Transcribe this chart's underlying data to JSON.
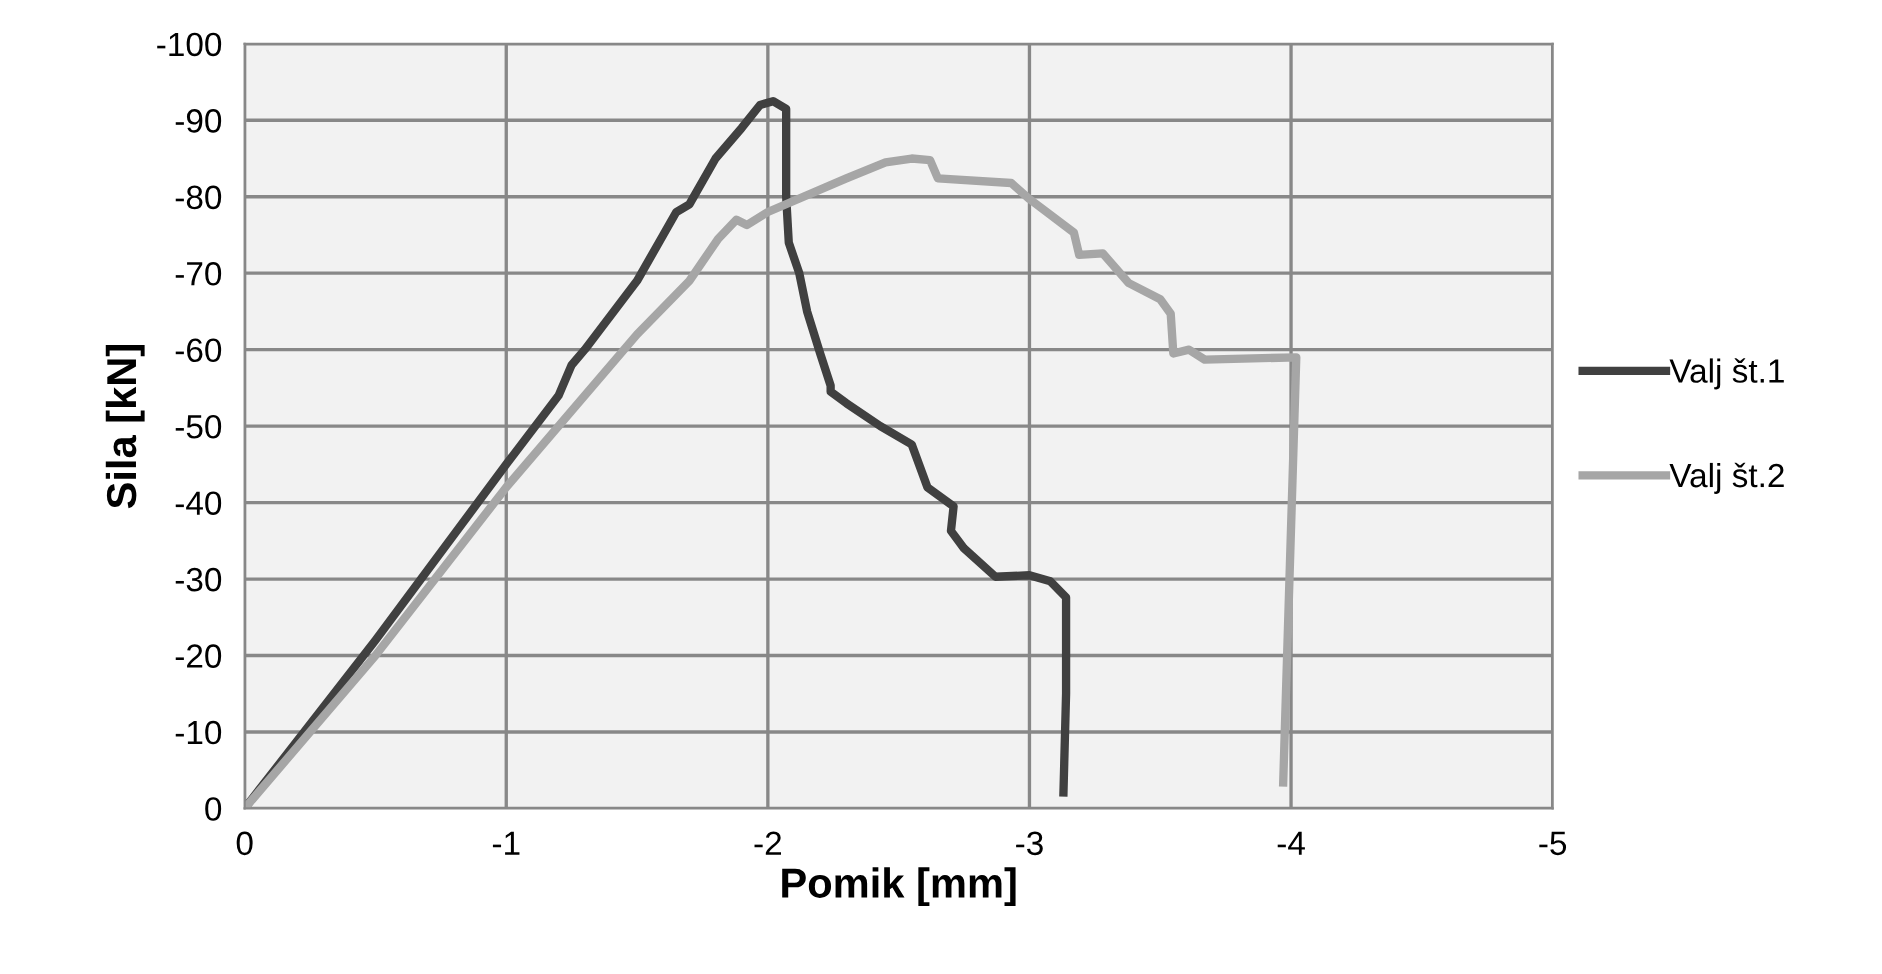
{
  "chart_data": {
    "type": "line",
    "xlabel": "Pomik [mm]",
    "ylabel": "Sila [kN]",
    "xlim": [
      0,
      -5
    ],
    "ylim": [
      0,
      -100
    ],
    "xticks": [
      0,
      -1,
      -2,
      -3,
      -4,
      -5
    ],
    "yticks": [
      0,
      -10,
      -20,
      -30,
      -40,
      -50,
      -60,
      -70,
      -80,
      -90,
      -100
    ],
    "grid": true,
    "legend": "right",
    "marker": "none",
    "line_style": "solid",
    "series": [
      {
        "name": "Valj št.1",
        "color": "#404040",
        "x": [
          0,
          -0.5,
          -1,
          -1.2,
          -1.25,
          -1.3,
          -1.5,
          -1.6,
          -1.65,
          -1.7,
          -1.8,
          -1.9,
          -1.97,
          -2.02,
          -2.07,
          -2.07,
          -2.08,
          -2.12,
          -2.15,
          -2.2,
          -2.24,
          -2.24,
          -2.3,
          -2.43,
          -2.55,
          -2.61,
          -2.71,
          -2.7,
          -2.75,
          -2.87,
          -3.0,
          -3.08,
          -3.14,
          -3.14,
          -3.13
        ],
        "values": [
          0,
          -22,
          -45,
          -54,
          -58,
          -60,
          -69,
          -75,
          -78,
          -79,
          -85,
          -89,
          -92,
          -92.5,
          -91.5,
          -80,
          -74,
          -70,
          -65,
          -59.5,
          -55.3,
          -54.5,
          -53,
          -50,
          -47.6,
          -42,
          -39.5,
          -36.3,
          -34,
          -30.3,
          -30.5,
          -29.7,
          -27.6,
          -15,
          -2.1
        ]
      },
      {
        "name": "Valj št.2",
        "color": "#a6a6a6",
        "x": [
          0,
          -0.5,
          -1,
          -1.5,
          -1.7,
          -1.81,
          -1.88,
          -1.92,
          -2.0,
          -2.3,
          -2.45,
          -2.55,
          -2.62,
          -2.65,
          -2.93,
          -3.0,
          -3.17,
          -3.19,
          -3.28,
          -3.38,
          -3.5,
          -3.54,
          -3.55,
          -3.61,
          -3.67,
          -4.02,
          -3.97
        ],
        "values": [
          0,
          -20,
          -42,
          -62,
          -69,
          -74.5,
          -77,
          -76.3,
          -78,
          -82.4,
          -84.5,
          -85,
          -84.8,
          -82.4,
          -81.8,
          -79.7,
          -75.3,
          -72.4,
          -72.6,
          -68.7,
          -66.6,
          -64.7,
          -59.5,
          -60,
          -58.7,
          -59,
          -3.4
        ]
      }
    ]
  }
}
